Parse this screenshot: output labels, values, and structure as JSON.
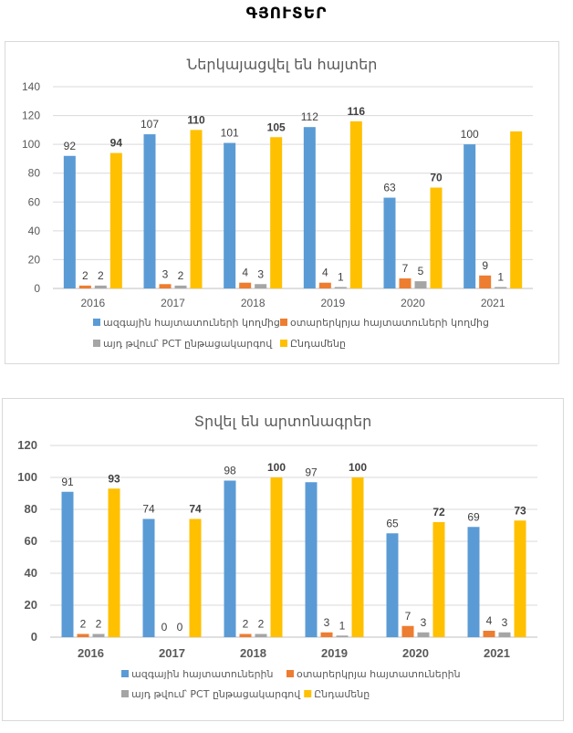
{
  "page": {
    "title": "ԳՅՈՒՏԵՐ"
  },
  "colors": {
    "national": "#5B9BD5",
    "foreign": "#ED7D31",
    "pct": "#A5A5A5",
    "total": "#FFC000"
  },
  "chart_data": [
    {
      "type": "bar",
      "title": "Ներկայացվել են հայտեր",
      "xlabel": "",
      "ylabel": "",
      "ylim": [
        0,
        140
      ],
      "yticks": [
        0,
        20,
        40,
        60,
        80,
        100,
        120,
        140
      ],
      "ytick_labels": [
        "0",
        "20",
        "40",
        "60",
        "80",
        "100",
        "120",
        "140"
      ],
      "categories": [
        "2016",
        "2017",
        "2018",
        "2019",
        "2020",
        "2021"
      ],
      "grid": true,
      "legend_position": "bottom",
      "bold_axis_labels": false,
      "series": [
        {
          "name": "ազգային հայտատուների կողմից",
          "color_key": "national",
          "values": [
            92,
            107,
            101,
            112,
            63,
            100
          ],
          "labels": [
            "92",
            "107",
            "101",
            "112",
            "63",
            "100"
          ],
          "bold_labels": false
        },
        {
          "name": "օտարերկրյա հայտատուների կողմից",
          "color_key": "foreign",
          "values": [
            2,
            3,
            4,
            4,
            7,
            9
          ],
          "labels": [
            "2",
            "3",
            "4",
            "4",
            "7",
            "9"
          ],
          "bold_labels": false
        },
        {
          "name": "այդ թվում՝ PCT ընթացակարգով",
          "color_key": "pct",
          "values": [
            2,
            2,
            3,
            1,
            5,
            1
          ],
          "labels": [
            "2",
            "2",
            "3",
            "1",
            "5",
            "1"
          ],
          "bold_labels": false
        },
        {
          "name": "Ընդամենը",
          "color_key": "total",
          "values": [
            94,
            110,
            105,
            116,
            70,
            109
          ],
          "labels": [
            "94",
            "110",
            "105",
            "116",
            "70",
            ""
          ],
          "bold_labels": true
        }
      ]
    },
    {
      "type": "bar",
      "title": "Տրվել են արտոնագրեր",
      "xlabel": "",
      "ylabel": "",
      "ylim": [
        0,
        120
      ],
      "yticks": [
        0,
        20,
        40,
        60,
        80,
        100,
        120
      ],
      "ytick_labels": [
        "0",
        "20",
        "40",
        "60",
        "80",
        "100",
        "120"
      ],
      "categories": [
        "2016",
        "2017",
        "2018",
        "2019",
        "2020",
        "2021"
      ],
      "grid": true,
      "legend_position": "bottom",
      "bold_axis_labels": true,
      "series": [
        {
          "name": "ազգային հայտատուներին",
          "color_key": "national",
          "values": [
            91,
            74,
            98,
            97,
            65,
            69
          ],
          "labels": [
            "91",
            "74",
            "98",
            "97",
            "65",
            "69"
          ],
          "bold_labels": false
        },
        {
          "name": "օտարերկրյա հայտատուներին",
          "color_key": "foreign",
          "values": [
            2,
            0,
            2,
            3,
            7,
            4
          ],
          "labels": [
            "2",
            "0",
            "2",
            "3",
            "7",
            "4"
          ],
          "bold_labels": false
        },
        {
          "name": "այդ թվում՝ PCT ընթացակարգով",
          "color_key": "pct",
          "values": [
            2,
            0,
            2,
            1,
            3,
            3
          ],
          "labels": [
            "2",
            "0",
            "2",
            "1",
            "3",
            "3"
          ],
          "bold_labels": false
        },
        {
          "name": "Ընդամենը",
          "color_key": "total",
          "values": [
            93,
            74,
            100,
            100,
            72,
            73
          ],
          "labels": [
            "93",
            "74",
            "100",
            "100",
            "72",
            "73"
          ],
          "bold_labels": true
        }
      ]
    }
  ]
}
